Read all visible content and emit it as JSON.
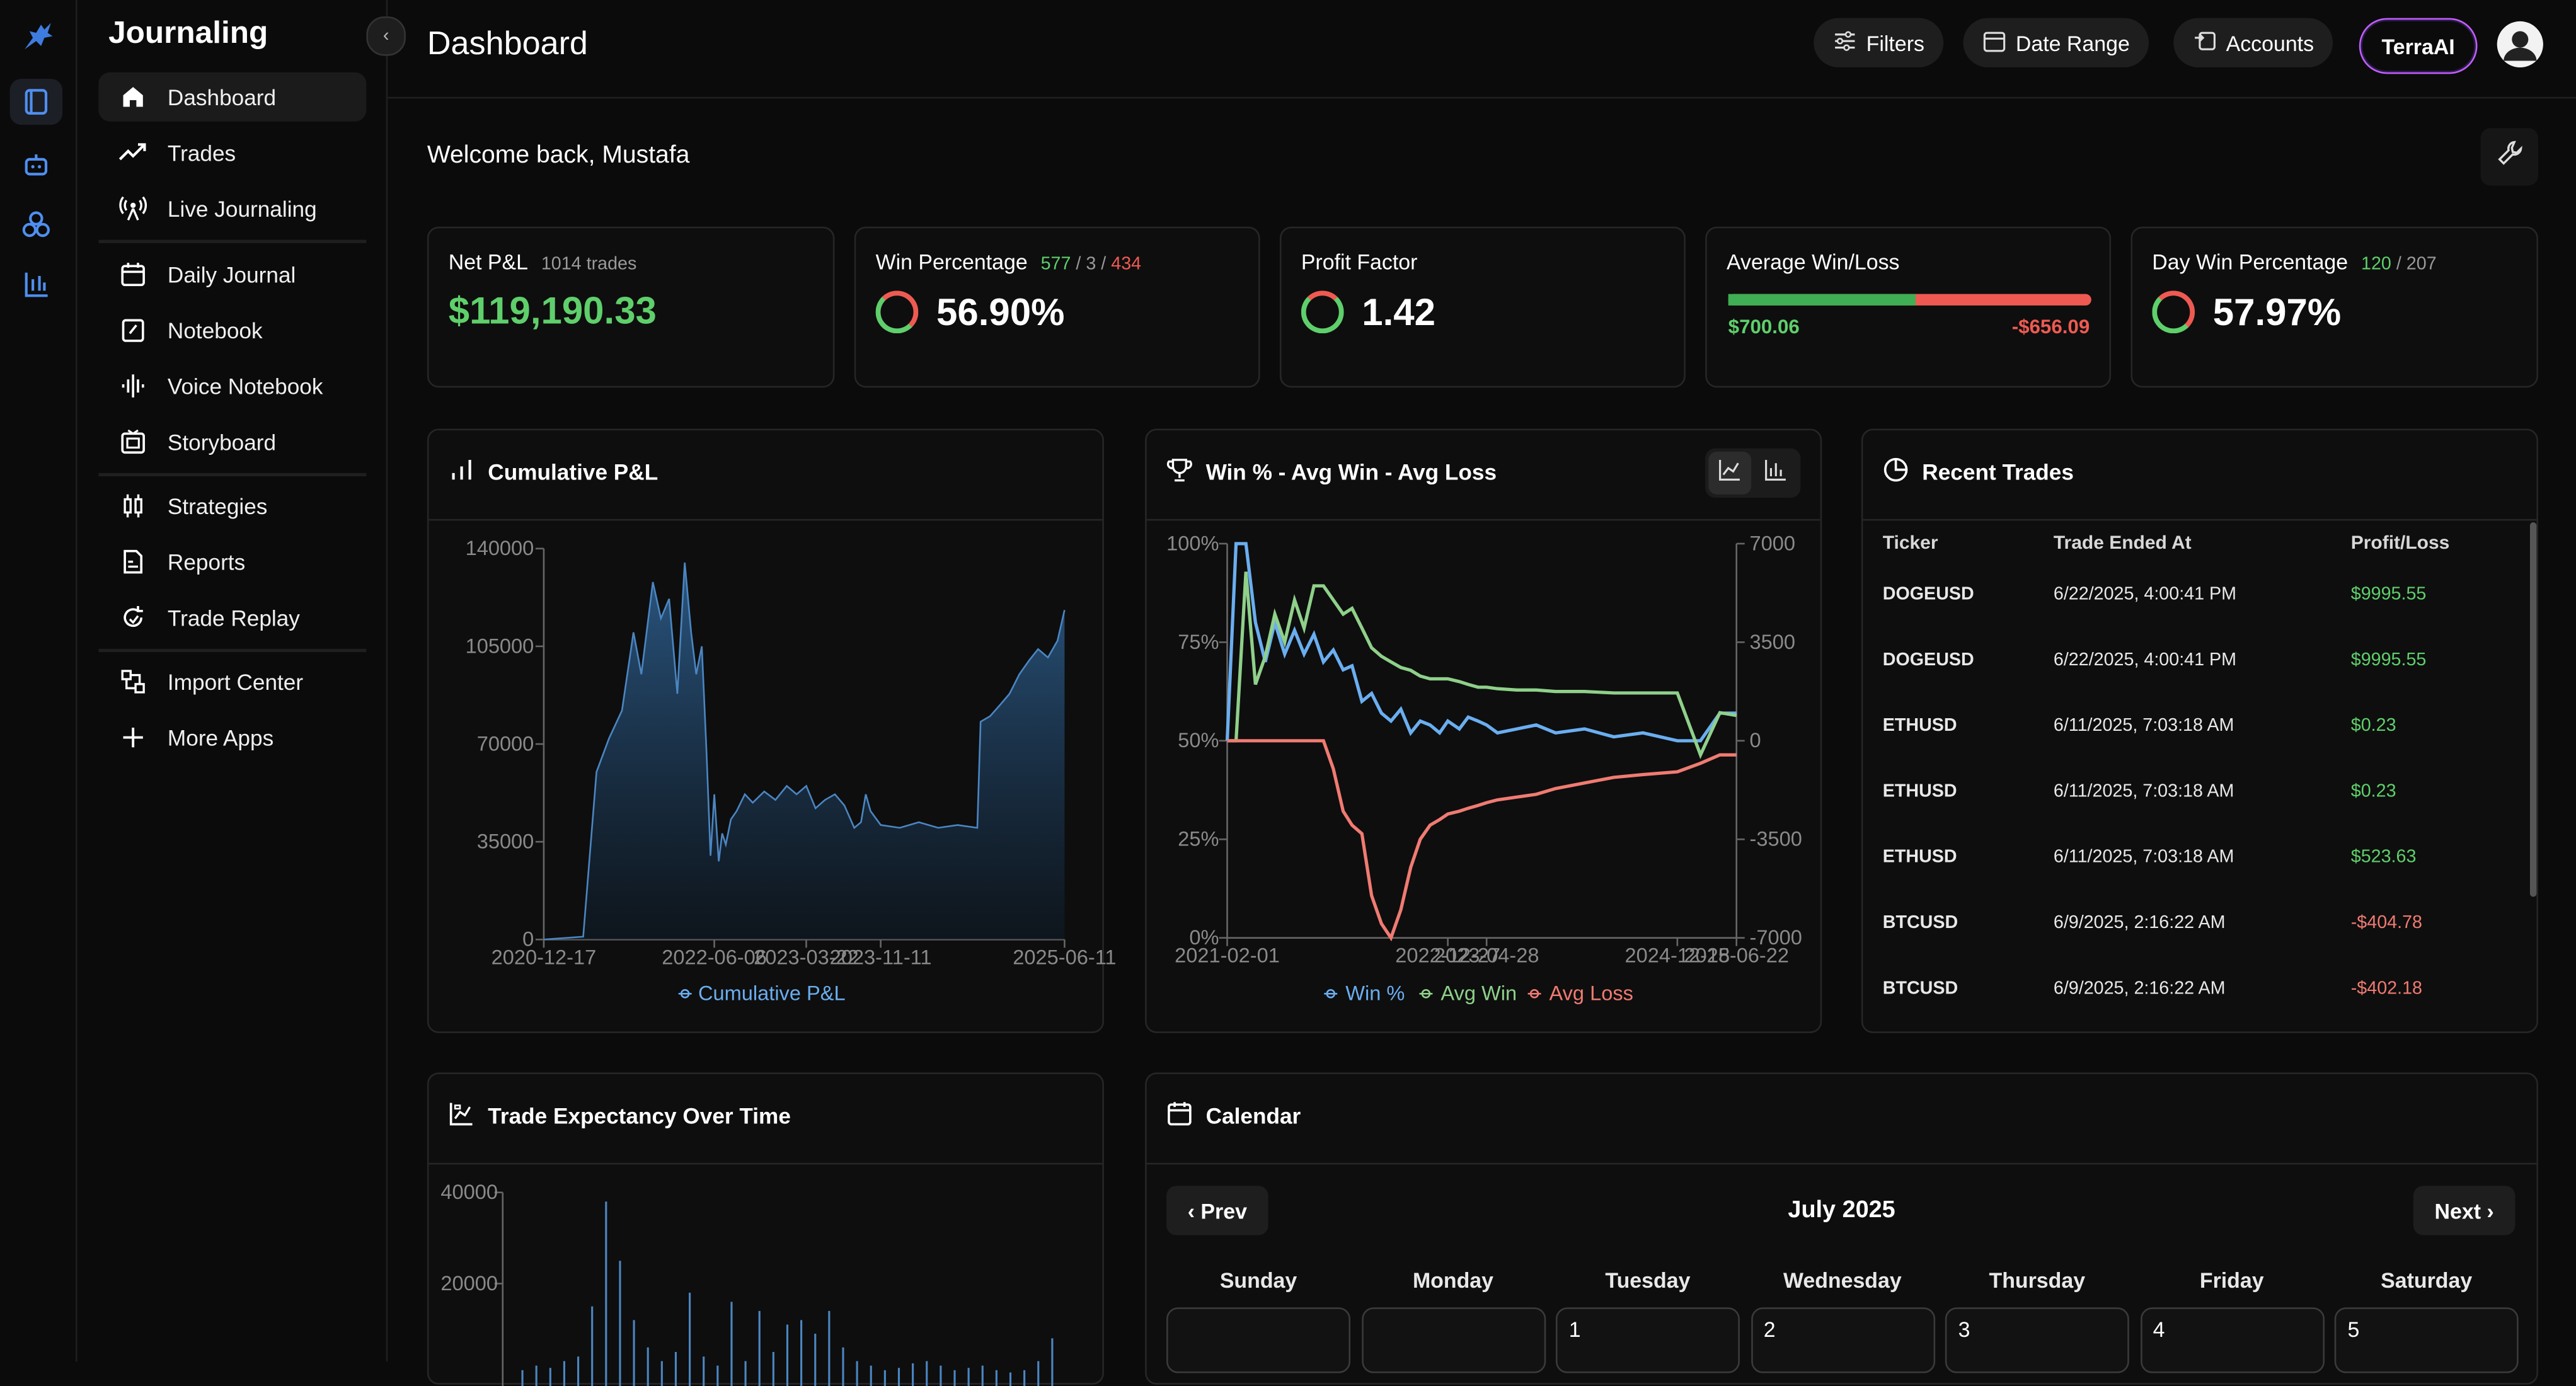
{
  "app": {
    "title": "Journaling"
  },
  "rail": {
    "icons": [
      "bull-logo-icon",
      "journal-icon",
      "bot-icon",
      "apps-icon",
      "chart-tools-icon"
    ]
  },
  "sidebar": {
    "items": [
      {
        "label": "Dashboard",
        "icon": "home-icon"
      },
      {
        "label": "Trades",
        "icon": "trend-icon"
      },
      {
        "label": "Live Journaling",
        "icon": "broadcast-icon"
      },
      {
        "label": "Daily Journal",
        "icon": "calendar-edit-icon"
      },
      {
        "label": "Notebook",
        "icon": "notebook-icon"
      },
      {
        "label": "Voice Notebook",
        "icon": "waveform-icon"
      },
      {
        "label": "Storyboard",
        "icon": "storyboard-icon"
      },
      {
        "label": "Strategies",
        "icon": "strategies-icon"
      },
      {
        "label": "Reports",
        "icon": "reports-icon"
      },
      {
        "label": "Trade Replay",
        "icon": "replay-icon"
      },
      {
        "label": "Import Center",
        "icon": "import-icon"
      },
      {
        "label": "More Apps",
        "icon": "plus-icon"
      }
    ]
  },
  "header": {
    "title": "Dashboard",
    "filters": "Filters",
    "date_range": "Date Range",
    "accounts": "Accounts",
    "ai": "TerraAI"
  },
  "welcome": "Welcome back, Mustafa",
  "stats": {
    "net_pnl": {
      "label": "Net P&L",
      "sub": "1014 trades",
      "value": "$119,190.33"
    },
    "win_pct": {
      "label": "Win Percentage",
      "wins": "577",
      "sep1": " / ",
      "be": "3",
      "sep2": " / ",
      "losses": "434",
      "value": "56.90%"
    },
    "profit_factor": {
      "label": "Profit Factor",
      "value": "1.42"
    },
    "avg_win_loss": {
      "label": "Average Win/Loss",
      "win": "$700.06",
      "loss": "-$656.09",
      "win_share": 0.516
    },
    "day_win": {
      "label": "Day Win Percentage",
      "wins": "120",
      "sep": " / ",
      "total": "207",
      "value": "57.97%"
    }
  },
  "colors": {
    "green": "#5fcf6b",
    "red": "#ee5a52",
    "blue": "#6aaef0",
    "area": "#2b4a6b",
    "purple": "#c45cff"
  },
  "panels": {
    "cumulative": {
      "title": "Cumulative P&L",
      "legend": "Cumulative P&L"
    },
    "winavg": {
      "title": "Win % - Avg Win - Avg Loss",
      "legend": [
        "Win %",
        "Avg Win",
        "Avg Loss"
      ]
    },
    "recent": {
      "title": "Recent Trades",
      "headers": [
        "Ticker",
        "Trade Ended At",
        "Profit/Loss"
      ]
    },
    "expectancy": {
      "title": "Trade Expectancy Over Time"
    },
    "calendar": {
      "title": "Calendar",
      "prev": "‹ Prev",
      "next": "Next ›",
      "month": "July 2025",
      "days": [
        "Sunday",
        "Monday",
        "Tuesday",
        "Wednesday",
        "Thursday",
        "Friday",
        "Saturday"
      ],
      "first_row": [
        "",
        "",
        "1",
        "2",
        "3",
        "4",
        "5"
      ]
    }
  },
  "recent_trades": [
    {
      "ticker": "DOGEUSD",
      "ended": "6/22/2025, 4:00:41 PM",
      "pl": "$9995.55",
      "positive": true
    },
    {
      "ticker": "DOGEUSD",
      "ended": "6/22/2025, 4:00:41 PM",
      "pl": "$9995.55",
      "positive": true
    },
    {
      "ticker": "ETHUSD",
      "ended": "6/11/2025, 7:03:18 AM",
      "pl": "$0.23",
      "positive": true
    },
    {
      "ticker": "ETHUSD",
      "ended": "6/11/2025, 7:03:18 AM",
      "pl": "$0.23",
      "positive": true
    },
    {
      "ticker": "ETHUSD",
      "ended": "6/11/2025, 7:03:18 AM",
      "pl": "$523.63",
      "positive": true
    },
    {
      "ticker": "BTCUSD",
      "ended": "6/9/2025, 2:16:22 AM",
      "pl": "-$404.78",
      "positive": false
    },
    {
      "ticker": "BTCUSD",
      "ended": "6/9/2025, 2:16:22 AM",
      "pl": "-$402.18",
      "positive": false
    }
  ],
  "chart_data": [
    {
      "type": "area",
      "title": "Cumulative P&L",
      "xlabel": "",
      "ylabel": "",
      "x_ticks": [
        "2020-12-17",
        "2022-06-06",
        "2023-03-22",
        "2023-11-11",
        "2025-06-11"
      ],
      "y_ticks": [
        0,
        35000,
        70000,
        105000,
        140000
      ],
      "ylim": [
        0,
        140000
      ],
      "grid": false,
      "legend": "bottom",
      "series": [
        {
          "name": "Cumulative P&L",
          "x": [
            "2020-12-17",
            "2021-04-20",
            "2021-06-01",
            "2021-07-10",
            "2021-08-20",
            "2021-09-25",
            "2021-10-20",
            "2021-11-25",
            "2021-12-20",
            "2022-01-15",
            "2022-02-10",
            "2022-03-05",
            "2022-03-25",
            "2022-04-10",
            "2022-04-28",
            "2022-05-12",
            "2022-05-25",
            "2022-06-06",
            "2022-06-20",
            "2022-07-01",
            "2022-07-12",
            "2022-07-28",
            "2022-08-15",
            "2022-09-10",
            "2022-10-05",
            "2022-11-10",
            "2022-12-15",
            "2023-01-20",
            "2023-02-20",
            "2023-03-22",
            "2023-04-20",
            "2023-05-20",
            "2023-06-20",
            "2023-07-20",
            "2023-08-20",
            "2023-09-10",
            "2023-09-25",
            "2023-10-10",
            "2023-11-11",
            "2024-01-10",
            "2024-03-10",
            "2024-05-10",
            "2024-07-10",
            "2024-09-10",
            "2024-09-20",
            "2024-10-20",
            "2024-11-20",
            "2024-12-20",
            "2025-01-20",
            "2025-02-20",
            "2025-03-20",
            "2025-04-20",
            "2025-05-20",
            "2025-06-11"
          ],
          "values": [
            0,
            1000,
            60000,
            72000,
            82000,
            110000,
            95000,
            128000,
            115000,
            122000,
            88000,
            135000,
            110000,
            95000,
            105000,
            68000,
            30000,
            52000,
            28000,
            38000,
            34000,
            43000,
            46000,
            52000,
            49000,
            53000,
            50000,
            55000,
            52000,
            55000,
            47000,
            50000,
            52000,
            48000,
            40000,
            42000,
            52000,
            46000,
            41000,
            40000,
            42000,
            40000,
            41000,
            40000,
            78000,
            80000,
            84000,
            88000,
            95000,
            100000,
            104000,
            101000,
            107000,
            118000
          ]
        }
      ]
    },
    {
      "type": "line",
      "title": "Win % - Avg Win - Avg Loss",
      "x_ticks": [
        "2021-02-01",
        "2022-12-27",
        "2023-04-28",
        "2024-12-18",
        "2025-06-22"
      ],
      "y_left_ticks": [
        "0%",
        "25%",
        "50%",
        "75%",
        "100%"
      ],
      "y_right_ticks": [
        -7000,
        -3500,
        0,
        3500,
        7000
      ],
      "ylim_left": [
        0,
        100
      ],
      "ylim_right": [
        -7000,
        7000
      ],
      "grid": false,
      "legend": "bottom",
      "x": [
        "2021-02-01",
        "2021-03-01",
        "2021-04-01",
        "2021-05-01",
        "2021-06-01",
        "2021-07-01",
        "2021-08-01",
        "2021-09-01",
        "2021-10-01",
        "2021-11-01",
        "2021-12-01",
        "2022-01-01",
        "2022-02-01",
        "2022-03-01",
        "2022-04-01",
        "2022-05-01",
        "2022-06-01",
        "2022-07-01",
        "2022-08-01",
        "2022-09-01",
        "2022-10-01",
        "2022-11-01",
        "2022-12-01",
        "2022-12-27",
        "2023-02-01",
        "2023-03-01",
        "2023-04-01",
        "2023-04-28",
        "2023-06-01",
        "2023-08-01",
        "2023-10-01",
        "2023-12-01",
        "2024-03-01",
        "2024-06-01",
        "2024-09-01",
        "2024-12-18",
        "2025-03-01",
        "2025-05-01",
        "2025-06-22"
      ],
      "series": [
        {
          "name": "Win %",
          "axis": "left",
          "values": [
            50,
            100,
            100,
            80,
            70,
            80,
            72,
            78,
            72,
            77,
            70,
            73,
            68,
            69,
            60,
            62,
            57,
            55,
            58,
            52,
            55,
            54,
            52,
            55,
            53,
            56,
            55,
            54,
            52,
            53,
            54,
            52,
            53,
            51,
            52,
            50,
            50,
            57,
            57
          ]
        },
        {
          "name": "Avg Win",
          "axis": "right",
          "values": [
            0,
            0,
            6000,
            2000,
            3000,
            4500,
            3500,
            5000,
            4000,
            5500,
            5500,
            5000,
            4500,
            4700,
            4000,
            3300,
            3000,
            2800,
            2600,
            2500,
            2300,
            2200,
            2200,
            2200,
            2100,
            2000,
            1900,
            1900,
            1850,
            1800,
            1800,
            1750,
            1750,
            1700,
            1700,
            1700,
            -500,
            1000,
            900
          ]
        },
        {
          "name": "Avg Loss",
          "axis": "right",
          "values": [
            0,
            0,
            0,
            0,
            0,
            0,
            0,
            0,
            0,
            0,
            0,
            -1000,
            -2500,
            -3000,
            -3300,
            -5500,
            -6500,
            -7000,
            -6000,
            -4500,
            -3500,
            -3000,
            -2800,
            -2600,
            -2500,
            -2400,
            -2300,
            -2200,
            -2100,
            -2000,
            -1900,
            -1700,
            -1500,
            -1300,
            -1200,
            -1100,
            -800,
            -500,
            -500
          ]
        }
      ]
    },
    {
      "type": "bar",
      "title": "Trade Expectancy Over Time",
      "y_ticks": [
        20000,
        40000
      ],
      "ylim": [
        0,
        40000
      ],
      "grid": false,
      "series": [
        {
          "name": "",
          "values": [
            1000,
            2000,
            1500,
            3000,
            4000,
            15000,
            38000,
            25000,
            12000,
            6000,
            3000,
            5000,
            18000,
            4000,
            2000,
            16000,
            3000,
            14000,
            5000,
            11000,
            12000,
            9000,
            14000,
            6000,
            3000,
            2000,
            1000,
            1500,
            2500,
            3000,
            2000,
            1000,
            1500,
            2000,
            1000,
            500,
            1000,
            3000,
            8000
          ]
        }
      ]
    }
  ]
}
